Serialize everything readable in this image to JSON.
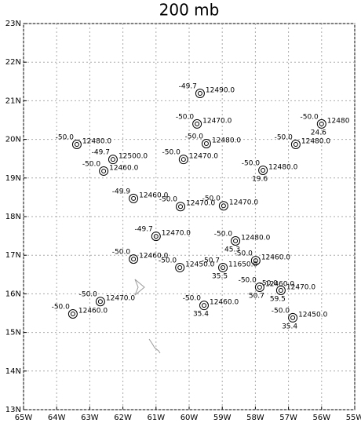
{
  "title": "200 mb",
  "lon_lim": [
    -65,
    -55
  ],
  "lat_lim": [
    13,
    23
  ],
  "lon_ticks": [
    {
      "value": -65,
      "label": "65W"
    },
    {
      "value": -64,
      "label": "64W"
    },
    {
      "value": -63,
      "label": "63W"
    },
    {
      "value": -62,
      "label": "62W"
    },
    {
      "value": -61,
      "label": "61W"
    },
    {
      "value": -60,
      "label": "60W"
    },
    {
      "value": -59,
      "label": "59W"
    },
    {
      "value": -58,
      "label": "58W"
    },
    {
      "value": -57,
      "label": "57W"
    },
    {
      "value": -56,
      "label": "56W"
    },
    {
      "value": -55,
      "label": "55W"
    }
  ],
  "lat_ticks": [
    {
      "value": 13,
      "label": "13N"
    },
    {
      "value": 14,
      "label": "14N"
    },
    {
      "value": 15,
      "label": "15N"
    },
    {
      "value": 16,
      "label": "16N"
    },
    {
      "value": 17,
      "label": "17N"
    },
    {
      "value": 18,
      "label": "18N"
    },
    {
      "value": 19,
      "label": "19N"
    },
    {
      "value": 20,
      "label": "20N"
    },
    {
      "value": 21,
      "label": "21N"
    },
    {
      "value": 22,
      "label": "22N"
    },
    {
      "value": 23,
      "label": "23N"
    }
  ],
  "stations": [
    {
      "lon": -59.67,
      "lat": 21.19,
      "temp": "-49.7",
      "height": "12490.0"
    },
    {
      "lon": -59.76,
      "lat": 20.4,
      "temp": "-50.0",
      "height": "12470.0"
    },
    {
      "lon": -56.0,
      "lat": 20.4,
      "temp": "-50.0",
      "height": "12480",
      "extra": "24.6"
    },
    {
      "lon": -63.39,
      "lat": 19.87,
      "temp": "-50.0",
      "height": "12480.0"
    },
    {
      "lon": -59.48,
      "lat": 19.89,
      "temp": "-50.0",
      "height": "12480.0"
    },
    {
      "lon": -56.78,
      "lat": 19.87,
      "temp": "-50.0",
      "height": "12480.0"
    },
    {
      "lon": -62.3,
      "lat": 19.48,
      "temp": "-49.7",
      "height": "12500.0"
    },
    {
      "lon": -62.58,
      "lat": 19.18,
      "temp": "-50.0",
      "height": "12460.0"
    },
    {
      "lon": -60.17,
      "lat": 19.48,
      "temp": "-50.0",
      "height": "12470.0"
    },
    {
      "lon": -57.77,
      "lat": 19.2,
      "temp": "-50.0",
      "height": "12480.0",
      "extra": "19.6"
    },
    {
      "lon": -61.68,
      "lat": 18.47,
      "temp": "-49.9",
      "height": "12460.0"
    },
    {
      "lon": -60.26,
      "lat": 18.26,
      "temp": "-50.0",
      "height": "12470.0"
    },
    {
      "lon": -58.96,
      "lat": 18.28,
      "temp": "-50.0",
      "height": "12470.0"
    },
    {
      "lon": -61.0,
      "lat": 17.49,
      "temp": "-49.7",
      "height": "12470.0"
    },
    {
      "lon": -58.6,
      "lat": 17.37,
      "temp": "-50.0",
      "height": "12480.0",
      "extra": "45.3"
    },
    {
      "lon": -61.68,
      "lat": 16.9,
      "temp": "-50.0",
      "height": "12460.0"
    },
    {
      "lon": -60.28,
      "lat": 16.68,
      "temp": "-50.0",
      "height": "12450.0"
    },
    {
      "lon": -58.98,
      "lat": 16.68,
      "temp": "-50.7",
      "height": "11650.0",
      "extra": "35.5"
    },
    {
      "lon": -57.99,
      "lat": 16.86,
      "temp": "-50.0",
      "height": "12460.0"
    },
    {
      "lon": -57.87,
      "lat": 16.17,
      "temp": "-50.0",
      "height": "12460.0",
      "extra": "50.7"
    },
    {
      "lon": -57.23,
      "lat": 16.09,
      "temp": "-50.0",
      "height": "12470.0",
      "extra": "59.5"
    },
    {
      "lon": -62.68,
      "lat": 15.8,
      "temp": "-50.0",
      "height": "12470.0"
    },
    {
      "lon": -63.51,
      "lat": 15.48,
      "temp": "-50.0",
      "height": "12460.0"
    },
    {
      "lon": -59.55,
      "lat": 15.7,
      "temp": "-50.0",
      "height": "12460.0",
      "extra": "35.4"
    },
    {
      "lon": -56.87,
      "lat": 15.38,
      "temp": "-50.0",
      "height": "12450.0",
      "extra": "35.4"
    }
  ]
}
